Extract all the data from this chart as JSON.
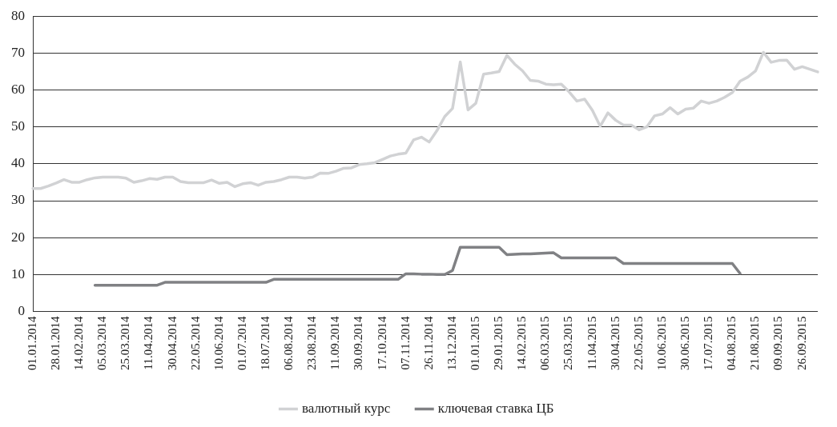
{
  "chart_data": {
    "type": "line",
    "categories": [
      "01.01.2014",
      null,
      null,
      "28.01.2014",
      null,
      null,
      "14.02.2014",
      null,
      null,
      "05.03.2014",
      null,
      null,
      "25.03.2014",
      null,
      null,
      "11.04.2014",
      null,
      null,
      "30.04.2014",
      null,
      null,
      "22.05.2014",
      null,
      null,
      "10.06.2014",
      null,
      null,
      "01.07.2014",
      null,
      null,
      "18.07.2014",
      null,
      null,
      "06.08.2014",
      null,
      null,
      "23.08.2014",
      null,
      null,
      "11.09.2014",
      null,
      null,
      "30.09.2014",
      null,
      null,
      "17.10.2014",
      null,
      null,
      "07.11.2014",
      null,
      null,
      "26.11.2014",
      null,
      null,
      "13.12.2014",
      null,
      null,
      "01.01.2015",
      null,
      null,
      "29.01.2015",
      null,
      null,
      "14.02.2015",
      null,
      null,
      "06.03.2015",
      null,
      null,
      "25.03.2015",
      null,
      null,
      "11.04.2015",
      null,
      null,
      "30.04.2015",
      null,
      null,
      "22.05.2015",
      null,
      null,
      "10.06.2015",
      null,
      null,
      "30.06.2015",
      null,
      null,
      "17.07.2015",
      null,
      null,
      "04.08.2015",
      null,
      null,
      "21.08.2015",
      null,
      null,
      "09.09.2015",
      null,
      null,
      "26.09.2015",
      null,
      null
    ],
    "series": [
      {
        "name": "валютный курс",
        "color": "#d1d2d4",
        "values": [
          33.3,
          33.3,
          34,
          34.8,
          35.7,
          35,
          35,
          35.7,
          36.2,
          36.4,
          36.4,
          36.4,
          36.1,
          35,
          35.4,
          36,
          35.8,
          36.4,
          36.4,
          35.2,
          34.9,
          34.9,
          34.9,
          35.6,
          34.7,
          35,
          33.8,
          34.6,
          34.9,
          34.2,
          35,
          35.2,
          35.7,
          36.4,
          36.4,
          36.1,
          36.4,
          37.5,
          37.4,
          38,
          38.8,
          38.9,
          39.8,
          40,
          40.3,
          41.2,
          42.1,
          42.6,
          42.9,
          46.5,
          47.2,
          45.9,
          49,
          52.8,
          55,
          67.6,
          54.6,
          56.4,
          64.3,
          64.6,
          65,
          69.4,
          67,
          65.2,
          62.6,
          62.4,
          61.6,
          61.4,
          61.6,
          59.5,
          57,
          57.5,
          54.5,
          50.2,
          53.8,
          51.8,
          50.5,
          50.5,
          49.2,
          50,
          53,
          53.5,
          55.2,
          53.5,
          54.8,
          55.1,
          57,
          56.4,
          57,
          58,
          59.3,
          62.4,
          63.5,
          65.2,
          70.2,
          67.5,
          68,
          68.1,
          65.6,
          66.3,
          65.6,
          64.9
        ]
      },
      {
        "name": "ключевая ставка ЦБ",
        "color": "#808184",
        "values": [
          null,
          null,
          null,
          null,
          null,
          null,
          null,
          null,
          7.1,
          7.1,
          7.1,
          7.1,
          7.1,
          7.1,
          7.1,
          7.1,
          7.1,
          7.9,
          7.9,
          7.9,
          7.9,
          7.9,
          7.9,
          7.9,
          7.9,
          7.9,
          7.9,
          7.9,
          7.9,
          7.9,
          7.9,
          8.7,
          8.7,
          8.7,
          8.7,
          8.7,
          8.7,
          8.7,
          8.7,
          8.7,
          8.7,
          8.7,
          8.7,
          8.7,
          8.7,
          8.7,
          8.7,
          8.7,
          10.2,
          10.2,
          10.1,
          10.1,
          10,
          10,
          11.1,
          17.4,
          17.4,
          17.4,
          17.4,
          17.4,
          17.4,
          15.4,
          15.5,
          15.6,
          15.6,
          15.7,
          15.8,
          15.9,
          14.5,
          14.5,
          14.5,
          14.5,
          14.5,
          14.5,
          14.5,
          14.5,
          13,
          13,
          13,
          13,
          13,
          13,
          13,
          13,
          13,
          13,
          13,
          13,
          13,
          13,
          13,
          10.3,
          null,
          null,
          null,
          null,
          null,
          null,
          null,
          null,
          null,
          null
        ]
      }
    ],
    "ylim": [
      0,
      80
    ],
    "yticks": [
      0,
      10,
      20,
      30,
      40,
      50,
      60,
      70,
      80
    ],
    "grid": "y",
    "legend": "bottom",
    "marker": "none",
    "line_style": "solid"
  }
}
